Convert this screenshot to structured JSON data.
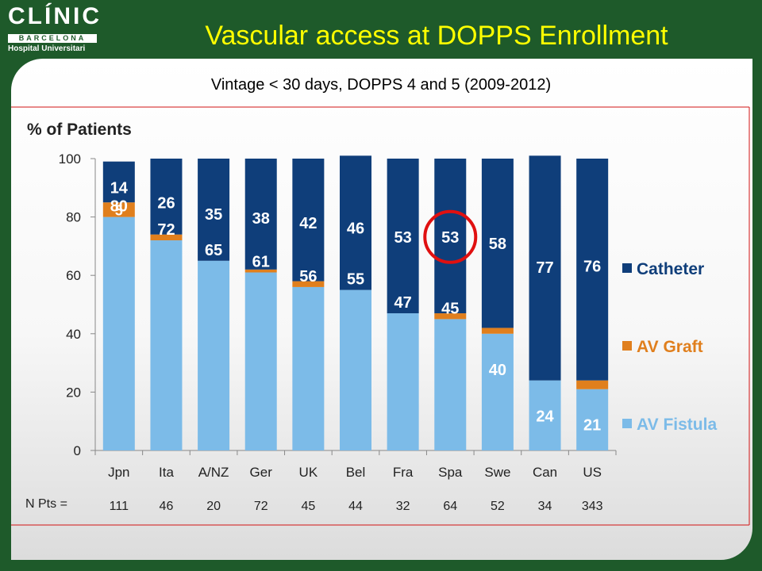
{
  "logo": {
    "name": "CLÍNIC",
    "sub": "BARCELONA",
    "hospital": "Hospital Universitari"
  },
  "slide_title": "Vascular access at DOPPS Enrollment",
  "chart_data": {
    "type": "bar",
    "stacked": true,
    "title": "Vintage < 30 days, DOPPS 4 and 5 (2009-2012)",
    "ylabel": "% of Patients",
    "ylim": [
      0,
      100
    ],
    "yticks": [
      0,
      20,
      40,
      60,
      80,
      100
    ],
    "categories": [
      "Jpn",
      "Ita",
      "A/NZ",
      "Ger",
      "UK",
      "Bel",
      "Fra",
      "Spa",
      "Swe",
      "Can",
      "US"
    ],
    "series": [
      {
        "name": "AV Fistula",
        "color": "#7cbbe8",
        "values": [
          80,
          72,
          65,
          61,
          56,
          55,
          47,
          45,
          40,
          24,
          21
        ]
      },
      {
        "name": "AV Graft",
        "color": "#e07f1d",
        "values": [
          5,
          2,
          0,
          1,
          2,
          0,
          0,
          2,
          2,
          0,
          3
        ]
      },
      {
        "name": "Catheter",
        "color": "#0f3e7a",
        "values": [
          14,
          26,
          35,
          38,
          42,
          46,
          53,
          53,
          58,
          77,
          76
        ]
      }
    ],
    "data_labels": {
      "AV Fistula": [
        "80",
        "72",
        "65",
        "61",
        "56",
        "55",
        "47",
        "45",
        "40",
        "24",
        "21"
      ],
      "AV Graft": [
        "5",
        "",
        "",
        "",
        "",
        "",
        "",
        "",
        "",
        "",
        ""
      ],
      "Catheter": [
        "14",
        "26",
        "35",
        "38",
        "42",
        "46",
        "53",
        "53",
        "58",
        "77",
        "76"
      ]
    },
    "npts_label": "N Pts =",
    "npts": [
      "111",
      "46",
      "20",
      "72",
      "45",
      "44",
      "32",
      "64",
      "52",
      "34",
      "343"
    ],
    "highlighted_category": "Spa",
    "highlight_color": "#e01010",
    "legend_position": "right",
    "legend_order": [
      "Catheter",
      "AV Graft",
      "AV Fistula"
    ],
    "grid": false
  }
}
